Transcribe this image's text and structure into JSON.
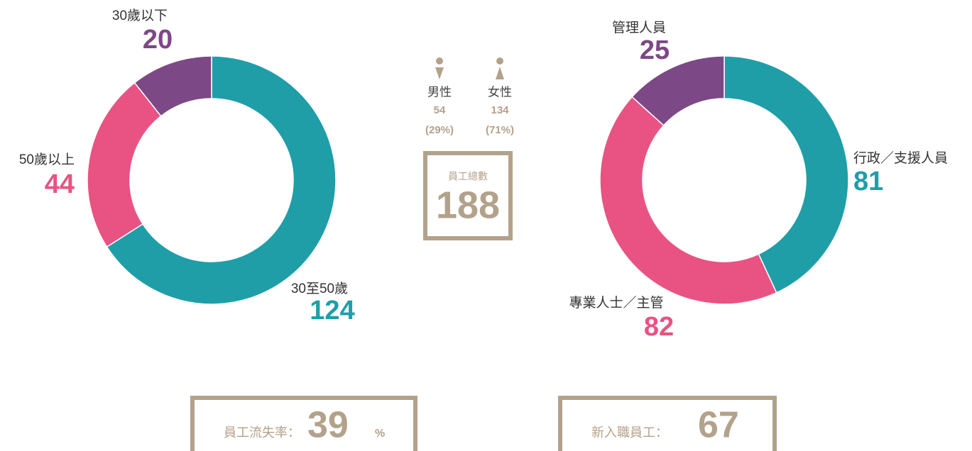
{
  "chart_data": [
    {
      "type": "pie",
      "donut": true,
      "categories": [
        "30至50歲",
        "50歲以上",
        "30歲以下"
      ],
      "values": [
        124,
        44,
        20
      ],
      "colors": [
        "#1f9ea8",
        "#e85383",
        "#7d4886"
      ]
    },
    {
      "type": "pie",
      "donut": true,
      "categories": [
        "行政／支援人員",
        "專業人士／主管",
        "管理人員"
      ],
      "values": [
        81,
        82,
        25
      ],
      "colors": [
        "#1f9ea8",
        "#e85383",
        "#7d4886"
      ]
    }
  ],
  "gender": [
    {
      "label": "男性",
      "count": 54,
      "share": "(29%)"
    },
    {
      "label": "女性",
      "count": 134,
      "share": "(71%)"
    }
  ],
  "total": {
    "label": "員工總數",
    "value": 188
  },
  "turnover": {
    "label": "員工流失率：",
    "value": 39,
    "unit": "%"
  },
  "new_hires": {
    "label": "新入職員工：",
    "value": 67
  }
}
